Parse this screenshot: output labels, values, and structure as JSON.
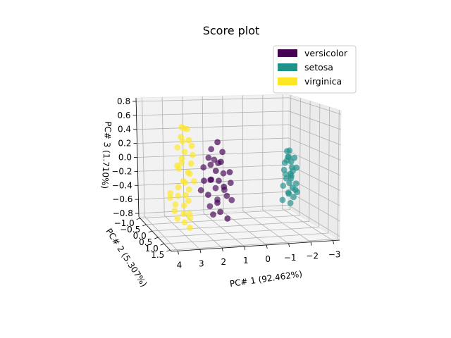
{
  "chart_data": {
    "type": "scatter",
    "projection": "3d",
    "title": "Score plot",
    "xlabel": "PC# 1 (92.462%)",
    "ylabel": "PC# 2 (5.307%)",
    "zlabel": "PC# 3 (1.710%)",
    "xlim": [
      -3.3,
      4.3
    ],
    "ylim": [
      -1.1,
      1.6
    ],
    "zlim": [
      -0.85,
      0.85
    ],
    "x_ticks": [
      "4",
      "3",
      "2",
      "1",
      "0",
      "−1",
      "−2",
      "−3"
    ],
    "x_tick_values": [
      4,
      3,
      2,
      1,
      0,
      -1,
      -2,
      -3
    ],
    "y_ticks": [
      "−1.0",
      "−0.5",
      "0.0",
      "0.5",
      "1.0",
      "1.5"
    ],
    "y_tick_values": [
      -1.0,
      -0.5,
      0.0,
      0.5,
      1.0,
      1.5
    ],
    "z_ticks": [
      "−0.8",
      "−0.6",
      "−0.4",
      "−0.2",
      "0.0",
      "0.2",
      "0.4",
      "0.6",
      "0.8"
    ],
    "z_tick_values": [
      -0.8,
      -0.6,
      -0.4,
      -0.2,
      0.0,
      0.2,
      0.4,
      0.6,
      0.8
    ],
    "legend_position": "top-right",
    "series": [
      {
        "name": "versicolor",
        "color": "#440154",
        "points": [
          [
            1.0,
            0.2,
            0.38
          ],
          [
            0.7,
            0.1,
            0.22
          ],
          [
            1.2,
            0.0,
            0.25
          ],
          [
            0.9,
            0.3,
            0.12
          ],
          [
            1.3,
            0.1,
            0.05
          ],
          [
            0.8,
            -0.1,
            0.03
          ],
          [
            1.1,
            0.2,
            -0.02
          ],
          [
            0.6,
            0.0,
            -0.1
          ],
          [
            1.4,
            0.3,
            -0.12
          ],
          [
            0.9,
            0.1,
            -0.18
          ],
          [
            1.2,
            -0.1,
            -0.2
          ],
          [
            0.7,
            0.2,
            -0.25
          ],
          [
            1.0,
            0.0,
            -0.3
          ],
          [
            1.5,
            0.2,
            -0.35
          ],
          [
            0.5,
            0.1,
            -0.4
          ],
          [
            1.1,
            0.3,
            -0.45
          ],
          [
            0.8,
            -0.2,
            -0.5
          ],
          [
            1.3,
            0.0,
            -0.55
          ],
          [
            0.9,
            0.2,
            -0.6
          ],
          [
            1.2,
            0.1,
            -0.65
          ],
          [
            0.6,
            0.3,
            -0.68
          ],
          [
            1.0,
            -0.1,
            0.08
          ],
          [
            0.4,
            0.2,
            -0.05
          ],
          [
            1.6,
            0.0,
            0.0
          ],
          [
            0.3,
            0.1,
            -0.22
          ],
          [
            1.7,
            0.2,
            -0.15
          ],
          [
            0.5,
            -0.1,
            -0.35
          ],
          [
            1.4,
            0.1,
            0.15
          ],
          [
            0.2,
            0.0,
            -0.48
          ],
          [
            1.8,
            0.1,
            -0.3
          ]
        ]
      },
      {
        "name": "setosa",
        "color": "#21918c",
        "points": [
          [
            -2.6,
            0.1,
            0.1
          ],
          [
            -2.7,
            0.2,
            0.05
          ],
          [
            -2.5,
            0.0,
            0.0
          ],
          [
            -2.8,
            0.1,
            -0.05
          ],
          [
            -2.6,
            0.3,
            -0.1
          ],
          [
            -2.9,
            0.0,
            -0.12
          ],
          [
            -2.7,
            0.2,
            -0.15
          ],
          [
            -2.5,
            0.1,
            -0.2
          ],
          [
            -2.8,
            0.0,
            -0.22
          ],
          [
            -2.6,
            0.2,
            -0.25
          ],
          [
            -3.0,
            0.1,
            -0.28
          ],
          [
            -2.7,
            0.3,
            -0.3
          ],
          [
            -2.4,
            0.0,
            -0.32
          ],
          [
            -2.9,
            0.2,
            -0.35
          ],
          [
            -2.6,
            0.1,
            -0.4
          ],
          [
            -2.8,
            -0.1,
            0.15
          ],
          [
            -2.5,
            0.2,
            0.2
          ],
          [
            -2.7,
            0.0,
            0.08
          ],
          [
            -2.9,
            0.3,
            -0.02
          ],
          [
            -2.4,
            0.1,
            -0.08
          ],
          [
            -2.6,
            -0.1,
            -0.18
          ],
          [
            -2.8,
            0.2,
            -0.45
          ],
          [
            -2.5,
            0.3,
            -0.38
          ],
          [
            -3.1,
            0.0,
            -0.42
          ],
          [
            -2.3,
            0.1,
            -0.5
          ],
          [
            -2.7,
            0.1,
            -0.55
          ],
          [
            -2.6,
            0.0,
            0.03
          ],
          [
            -2.8,
            0.3,
            0.12
          ]
        ]
      },
      {
        "name": "virginica",
        "color": "#fde725",
        "points": [
          [
            2.8,
            0.2,
            0.62
          ],
          [
            2.6,
            0.1,
            0.58
          ],
          [
            2.4,
            0.0,
            0.55
          ],
          [
            2.5,
            0.3,
            0.45
          ],
          [
            2.7,
            0.1,
            0.4
          ],
          [
            2.3,
            0.2,
            0.35
          ],
          [
            2.9,
            0.0,
            0.3
          ],
          [
            2.6,
            0.1,
            0.25
          ],
          [
            2.8,
            0.2,
            0.18
          ],
          [
            2.4,
            0.3,
            0.12
          ],
          [
            2.7,
            0.0,
            0.08
          ],
          [
            2.9,
            0.1,
            0.02
          ],
          [
            2.5,
            0.2,
            -0.02
          ],
          [
            2.3,
            0.0,
            -0.08
          ],
          [
            2.8,
            0.3,
            -0.12
          ],
          [
            2.6,
            0.1,
            -0.18
          ],
          [
            3.0,
            0.2,
            -0.22
          ],
          [
            2.4,
            0.1,
            -0.28
          ],
          [
            2.7,
            0.3,
            -0.32
          ],
          [
            2.9,
            0.0,
            -0.38
          ],
          [
            2.5,
            0.2,
            -0.42
          ],
          [
            3.1,
            0.1,
            -0.48
          ],
          [
            2.6,
            0.0,
            -0.52
          ],
          [
            2.8,
            0.3,
            -0.58
          ],
          [
            2.4,
            0.1,
            -0.62
          ],
          [
            3.2,
            0.2,
            -0.55
          ],
          [
            2.3,
            0.0,
            -0.7
          ],
          [
            2.7,
            0.2,
            -0.72
          ],
          [
            3.0,
            0.1,
            -0.68
          ],
          [
            2.5,
            0.3,
            -0.78
          ],
          [
            3.3,
            0.0,
            -0.4
          ],
          [
            2.2,
            0.2,
            -0.15
          ],
          [
            3.1,
            0.3,
            0.1
          ],
          [
            2.2,
            0.1,
            0.2
          ],
          [
            3.4,
            0.2,
            -0.3
          ],
          [
            2.9,
            0.3,
            0.5
          ]
        ]
      }
    ]
  }
}
